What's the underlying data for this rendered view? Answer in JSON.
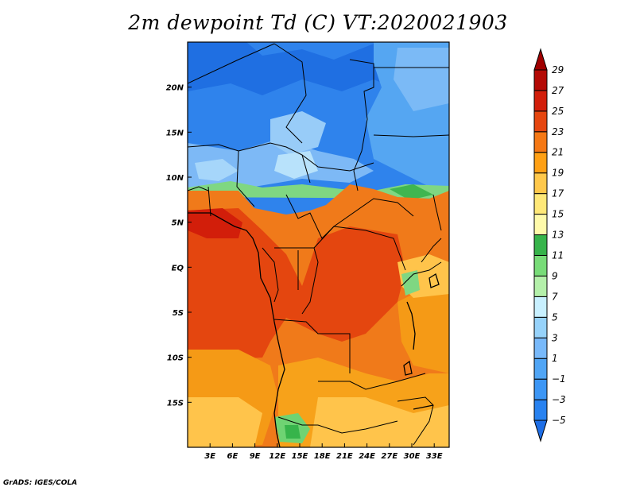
{
  "title": "2m dewpoint Td (C) VT:2020021903",
  "credit": "GrADS: IGES/COLA",
  "map": {
    "lon_range": [
      0,
      35
    ],
    "lat_range": [
      -20,
      25
    ],
    "x_ticks": [
      {
        "lon": 3,
        "label": "3E"
      },
      {
        "lon": 6,
        "label": "6E"
      },
      {
        "lon": 9,
        "label": "9E"
      },
      {
        "lon": 12,
        "label": "12E"
      },
      {
        "lon": 15,
        "label": "15E"
      },
      {
        "lon": 18,
        "label": "18E"
      },
      {
        "lon": 21,
        "label": "21E"
      },
      {
        "lon": 24,
        "label": "24E"
      },
      {
        "lon": 27,
        "label": "27E"
      },
      {
        "lon": 30,
        "label": "30E"
      },
      {
        "lon": 33,
        "label": "33E"
      }
    ],
    "y_ticks": [
      {
        "lat": 20,
        "label": "20N"
      },
      {
        "lat": 15,
        "label": "15N"
      },
      {
        "lat": 10,
        "label": "10N"
      },
      {
        "lat": 5,
        "label": "5N"
      },
      {
        "lat": 0,
        "label": "EQ"
      },
      {
        "lat": -5,
        "label": "5S"
      },
      {
        "lat": -10,
        "label": "10S"
      },
      {
        "lat": -15,
        "label": "15S"
      }
    ]
  },
  "colorbar": {
    "levels": [
      "-5",
      "-3",
      "-1",
      "1",
      "3",
      "5",
      "7",
      "9",
      "11",
      "13",
      "15",
      "17",
      "19",
      "21",
      "23",
      "25",
      "27",
      "29"
    ],
    "colors": [
      "#1e6ee6",
      "#2882f0",
      "#3c96f5",
      "#50a5f5",
      "#78b9fa",
      "#96d2fa",
      "#c8f0ff",
      "#b4f0aa",
      "#78dc78",
      "#37b44b",
      "#fffaaa",
      "#ffe878",
      "#ffc84b",
      "#ffa014",
      "#f57814",
      "#e6460f",
      "#d21e0a",
      "#b40a05",
      "#a00000"
    ]
  }
}
